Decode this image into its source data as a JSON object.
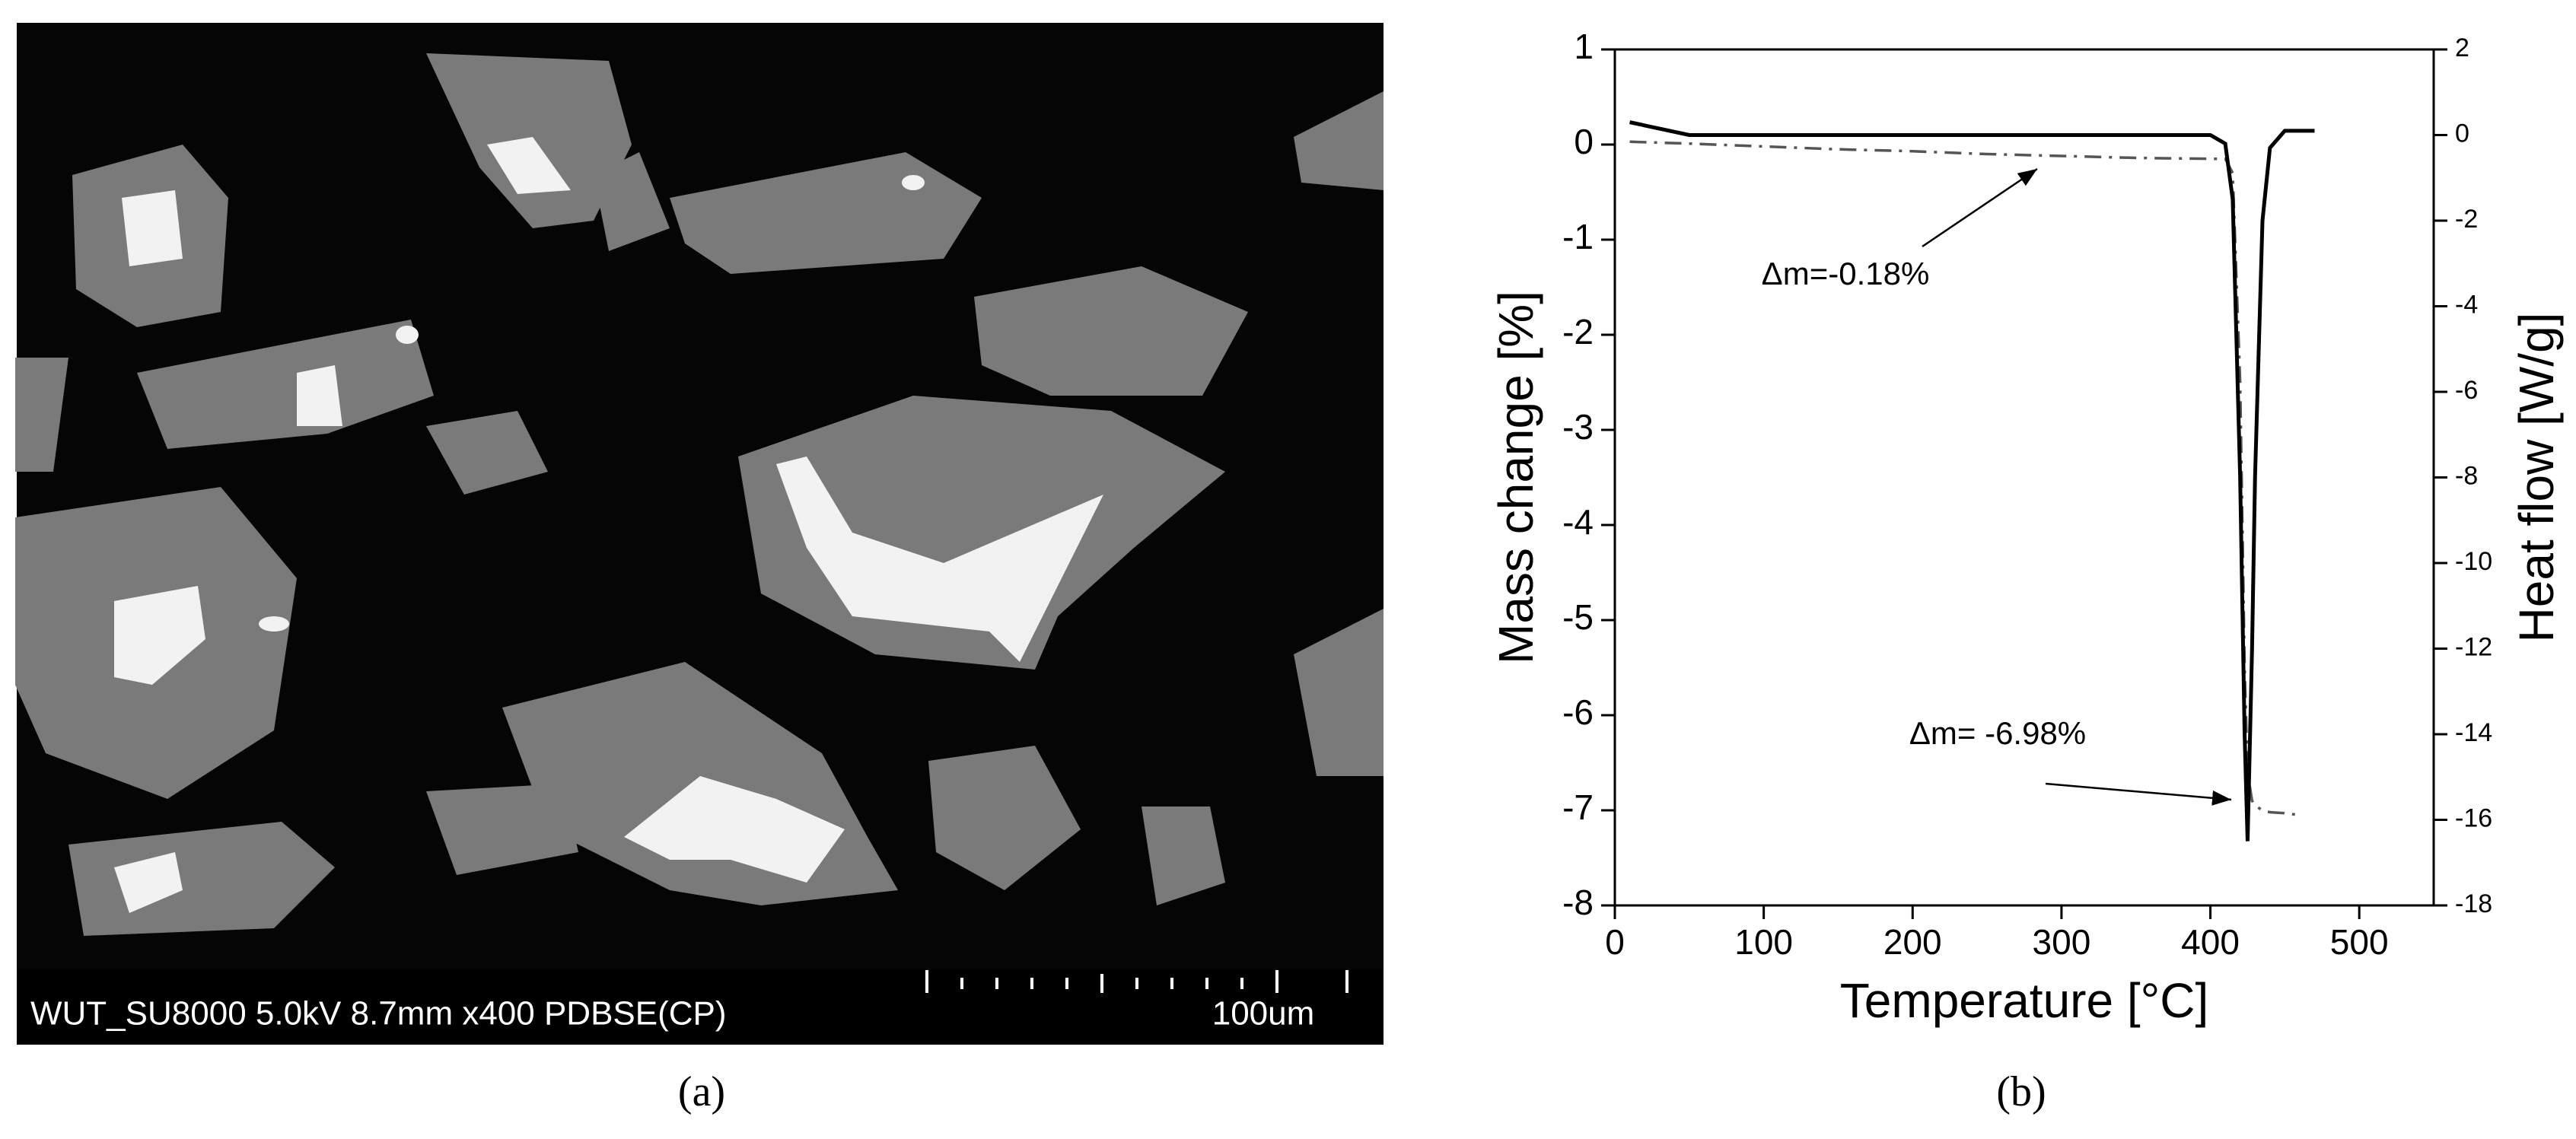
{
  "sem_image": {
    "info": "WUT_SU8000 5.0kV 8.7mm x400 PDBSE(CP)",
    "scale_bar": "100um"
  },
  "captions": [
    "(a)",
    "(b)"
  ],
  "chart_data": {
    "type": "line",
    "xlabel": "Temperature [°C]",
    "ylabel": "Mass change [%]",
    "y2label": "Heat flow [W/g]",
    "x": [
      10,
      50,
      100,
      150,
      200,
      250,
      300,
      350,
      400,
      410,
      415,
      420,
      423,
      425,
      428,
      430,
      435,
      440,
      450,
      460,
      470
    ],
    "series": [
      {
        "name": "Mass change",
        "color": "#555555",
        "line_style": "dash-dot",
        "axis": "y",
        "values": [
          0.03,
          0.01,
          -0.02,
          -0.05,
          -0.07,
          -0.1,
          -0.12,
          -0.14,
          -0.15,
          -0.15,
          -0.3,
          -2.5,
          -5.5,
          -6.6,
          -6.9,
          -6.95,
          -7.0,
          -7.02,
          -7.03,
          -7.05,
          null
        ]
      },
      {
        "name": "Heat flow",
        "color": "#000000",
        "line_style": "solid",
        "axis": "y2",
        "values": [
          0.3,
          0,
          0,
          0,
          0,
          0,
          0,
          0,
          0,
          -0.2,
          -1.5,
          -8,
          -14,
          -16.5,
          -12,
          -8,
          -2,
          -0.3,
          0.1,
          0.1,
          0.1
        ]
      }
    ],
    "xlim": [
      0,
      550
    ],
    "xticks": [
      0,
      100,
      200,
      300,
      400,
      500
    ],
    "ylim": [
      -8,
      1
    ],
    "yticks": [
      -8,
      -7,
      -6,
      -5,
      -4,
      -3,
      -2,
      -1,
      0,
      1
    ],
    "y2lim": [
      -18,
      2
    ],
    "y2ticks": [
      -18,
      -16,
      -14,
      -12,
      -10,
      -8,
      -6,
      -4,
      -2,
      0,
      2
    ],
    "annotations": [
      "Δm=-0.18%",
      "Δm= -6.98%"
    ]
  }
}
